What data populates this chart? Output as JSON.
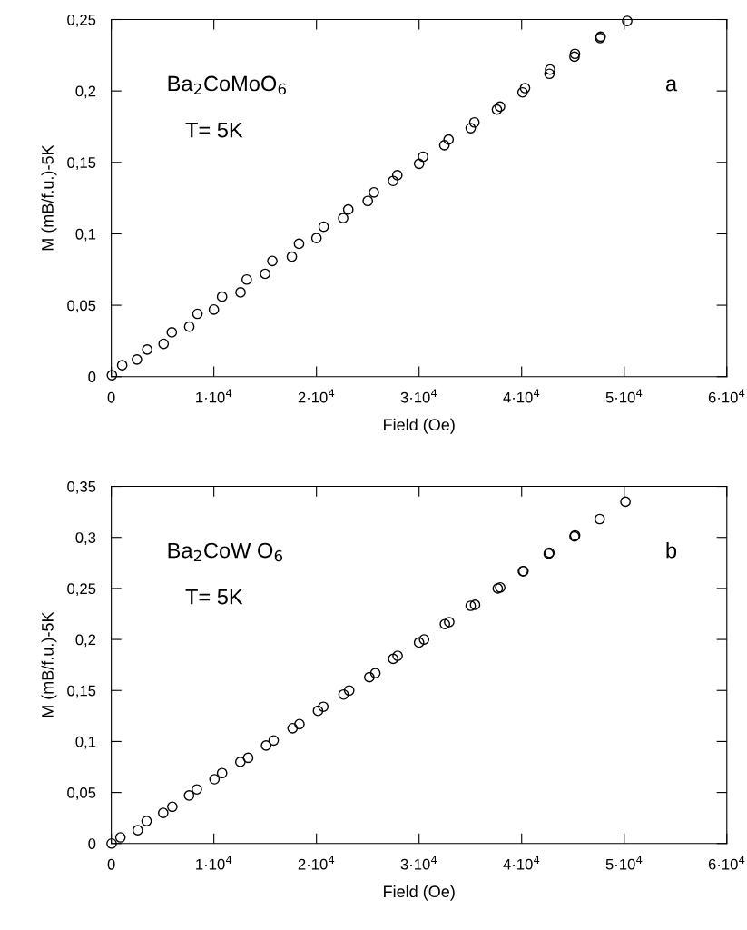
{
  "chart_data": [
    {
      "type": "scatter",
      "xlabel": "Field (Oe)",
      "ylabel": "M (mB/f.u.)-5K",
      "marker": "circle",
      "grid": false,
      "legend": false,
      "annotations": [
        "Ba$_{2}$CoMoO$_{6}$",
        "T= 5K",
        "a"
      ],
      "xlim": [
        0,
        60000
      ],
      "ylim": [
        0,
        0.25
      ],
      "xticks": [
        0,
        {
          "value": 10000,
          "label": "1·10$^{4}$"
        },
        {
          "value": 20000,
          "label": "2·10$^{4}$"
        },
        {
          "value": 30000,
          "label": "3·10$^{4}$"
        },
        {
          "value": 40000,
          "label": "4·10$^{4}$"
        },
        {
          "value": 50000,
          "label": "5·10$^{4}$"
        },
        {
          "value": 60000,
          "label": "6·10$^{4}$"
        }
      ],
      "yticks": [
        0,
        {
          "value": 0.05,
          "label": "0,05"
        },
        {
          "value": 0.1,
          "label": "0,1"
        },
        {
          "value": 0.15,
          "label": "0,15"
        },
        {
          "value": 0.2,
          "label": "0,2"
        },
        {
          "value": 0.25,
          "label": "0,25"
        }
      ],
      "series": [
        {
          "color": "#000000",
          "x": [
            60,
            1060,
            2500,
            3500,
            5100,
            5900,
            7600,
            8400,
            10000,
            10800,
            12600,
            13200,
            15000,
            15700,
            17600,
            18300,
            20000,
            20700,
            22600,
            23100,
            25000,
            25600,
            27470,
            27880,
            30000,
            30390,
            32470,
            32880,
            35030,
            35390,
            37590,
            37890,
            40090,
            40330,
            42710,
            42770,
            45150,
            45200,
            47650,
            47700,
            50290
          ],
          "values": [
            0.001,
            0.008,
            0.012,
            0.019,
            0.023,
            0.031,
            0.035,
            0.044,
            0.047,
            0.056,
            0.059,
            0.068,
            0.072,
            0.081,
            0.084,
            0.093,
            0.097,
            0.105,
            0.111,
            0.117,
            0.123,
            0.129,
            0.137,
            0.141,
            0.149,
            0.154,
            0.162,
            0.166,
            0.174,
            0.178,
            0.187,
            0.189,
            0.199,
            0.202,
            0.212,
            0.215,
            0.224,
            0.226,
            0.237,
            0.238,
            0.249
          ]
        }
      ]
    },
    {
      "type": "scatter",
      "xlabel": "Field (Oe)",
      "ylabel": "M (mB/f.u.)-5K",
      "marker": "circle",
      "grid": false,
      "legend": false,
      "annotations": [
        "Ba$_{2}$CoW O$_{6}$",
        "T= 5K",
        "b"
      ],
      "xlim": [
        0,
        60000
      ],
      "ylim": [
        0,
        0.35
      ],
      "xticks": [
        0,
        {
          "value": 10000,
          "label": "1·10$^{4}$"
        },
        {
          "value": 20000,
          "label": "2·10$^{4}$"
        },
        {
          "value": 30000,
          "label": "3·10$^{4}$"
        },
        {
          "value": 40000,
          "label": "4·10$^{4}$"
        },
        {
          "value": 50000,
          "label": "5·10$^{4}$"
        },
        {
          "value": 60000,
          "label": "6·10$^{4}$"
        }
      ],
      "yticks": [
        0,
        {
          "value": 0.05,
          "label": "0,05"
        },
        {
          "value": 0.1,
          "label": "0,1"
        },
        {
          "value": 0.15,
          "label": "0,15"
        },
        {
          "value": 0.2,
          "label": "0,2"
        },
        {
          "value": 0.25,
          "label": "0,25"
        },
        {
          "value": 0.3,
          "label": "0,3"
        },
        {
          "value": 0.35,
          "label": "0,35"
        }
      ],
      "series": [
        {
          "color": "#000000",
          "x": [
            30,
            890,
            2580,
            3440,
            5060,
            5950,
            7580,
            8340,
            10060,
            10800,
            12580,
            13340,
            15090,
            15830,
            17670,
            18340,
            20150,
            20670,
            22640,
            23190,
            25150,
            25740,
            27480,
            27910,
            30000,
            30490,
            32520,
            32940,
            35030,
            35460,
            37670,
            37910,
            40120,
            40180,
            42640,
            42700,
            45150,
            45210,
            47610,
            50120
          ],
          "values": [
            0.0,
            0.006,
            0.013,
            0.022,
            0.03,
            0.036,
            0.047,
            0.053,
            0.063,
            0.069,
            0.08,
            0.084,
            0.096,
            0.101,
            0.113,
            0.117,
            0.13,
            0.134,
            0.146,
            0.15,
            0.163,
            0.167,
            0.181,
            0.184,
            0.197,
            0.2,
            0.215,
            0.217,
            0.233,
            0.234,
            0.25,
            0.251,
            0.267,
            0.267,
            0.284,
            0.285,
            0.301,
            0.302,
            0.318,
            0.335
          ]
        }
      ]
    }
  ]
}
